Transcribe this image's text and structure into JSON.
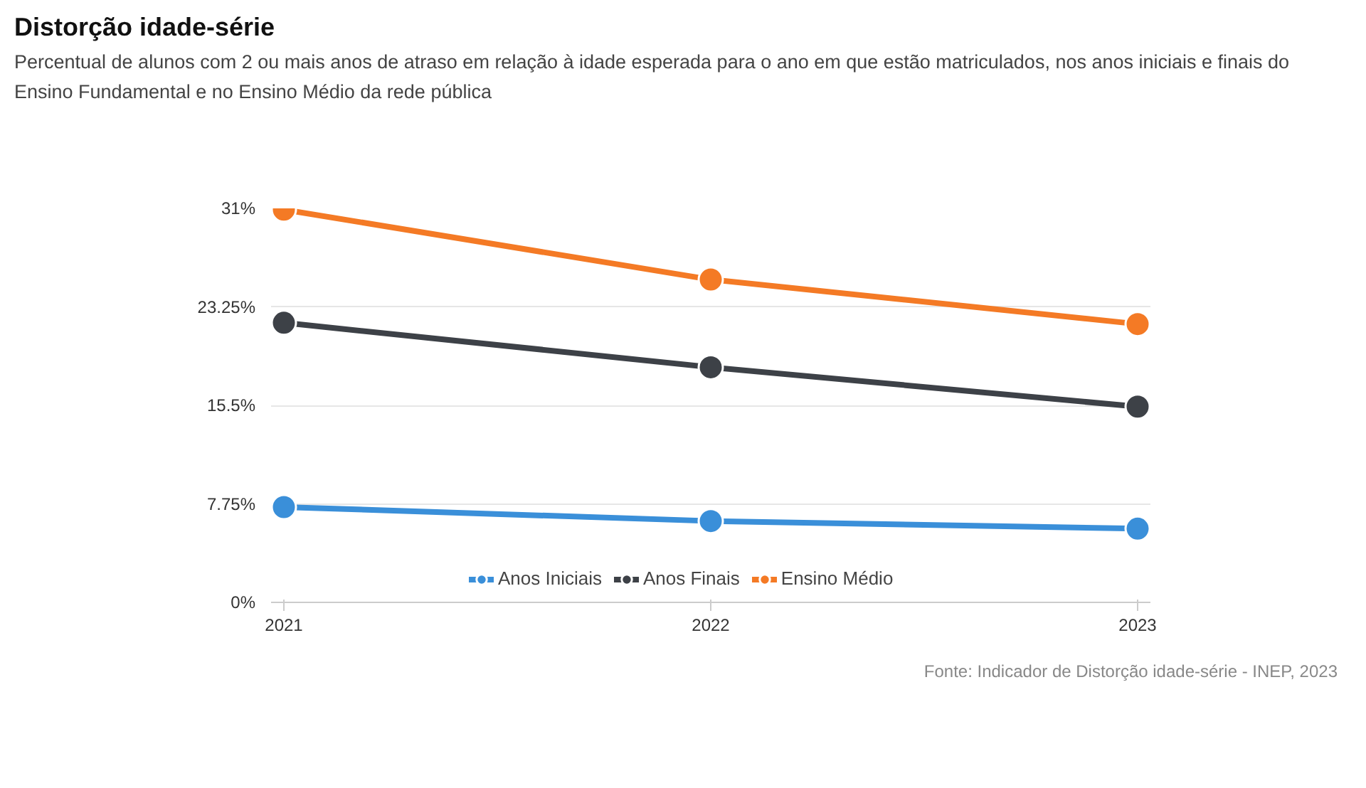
{
  "chart_data": {
    "type": "line",
    "title": "Distorção idade-série",
    "subtitle": "Percentual de alunos com 2 ou mais anos de atraso em relação à idade esperada para o ano em que estão matriculados, nos anos iniciais e finais do Ensino Fundamental e no Ensino Médio da rede pública",
    "categories": [
      "2021",
      "2022",
      "2023"
    ],
    "series": [
      {
        "name": "Anos Iniciais",
        "color": "#3a8fd9",
        "values": [
          7.5,
          6.4,
          5.8
        ]
      },
      {
        "name": "Anos Finais",
        "color": "#3d4147",
        "values": [
          22.0,
          18.5,
          15.4
        ]
      },
      {
        "name": "Ensino Médio",
        "color": "#f47a25",
        "values": [
          30.9,
          25.4,
          21.9
        ]
      }
    ],
    "ylim": [
      0,
      31
    ],
    "yticks": [
      {
        "value": 0,
        "label": "0%"
      },
      {
        "value": 7.75,
        "label": "7.75%"
      },
      {
        "value": 15.5,
        "label": "15.5%"
      },
      {
        "value": 23.25,
        "label": "23.25%"
      },
      {
        "value": 31,
        "label": "31%"
      }
    ],
    "grid": "y",
    "legend": "bottom",
    "marker": "circle",
    "line_style": "solid",
    "annotations": [
      "Fonte: Indicador de Distorção idade-série - INEP, 2023"
    ]
  }
}
